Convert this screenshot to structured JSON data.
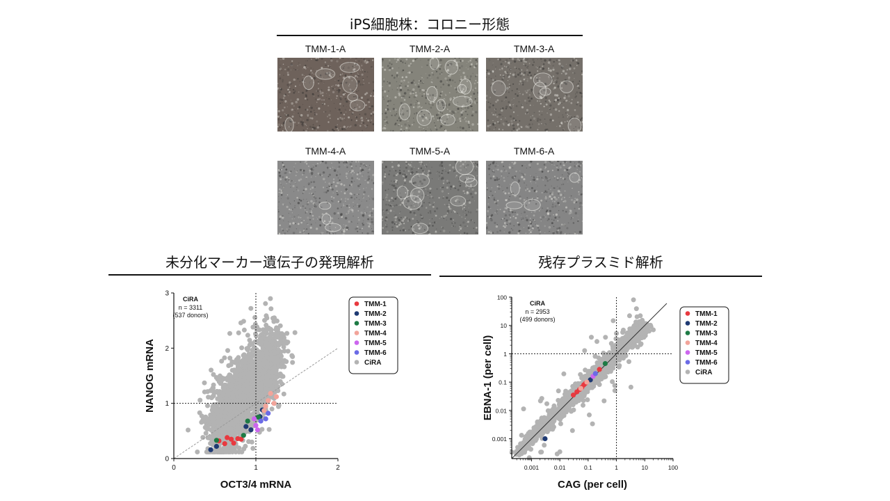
{
  "colony": {
    "title": "iPS細胞株：コロニー形態",
    "images": [
      {
        "label": "TMM-1-A",
        "tint": "#6e625b"
      },
      {
        "label": "TMM-2-A",
        "tint": "#85847b"
      },
      {
        "label": "TMM-3-A",
        "tint": "#75706a"
      },
      {
        "label": "TMM-4-A",
        "tint": "#8a8a8a"
      },
      {
        "label": "TMM-5-A",
        "tint": "#7a7a78"
      },
      {
        "label": "TMM-6-A",
        "tint": "#858585"
      }
    ]
  },
  "colors": {
    "TMM-1": "#e8393f",
    "TMM-2": "#1f3a73",
    "TMM-3": "#1e7b45",
    "TMM-4": "#f2a49a",
    "TMM-5": "#cc66ee",
    "TMM-6": "#6b6be6",
    "CiRA": "#b3b3b3"
  },
  "chart_data": [
    {
      "type": "scatter",
      "title": "未分化マーカー遺伝子の発現解析",
      "xlabel": "OCT3/4 mRNA",
      "ylabel": "NANOG  mRNA",
      "xlim": [
        0,
        2
      ],
      "ylim": [
        0,
        3
      ],
      "xticks": [
        "0",
        "1",
        "2"
      ],
      "yticks": [
        "0",
        "1",
        "2",
        "3"
      ],
      "annotation": {
        "title": "CiRA",
        "n": "n = 3311",
        "donors": "(537 donors)"
      },
      "reference_lines": {
        "x": 1,
        "y": 1,
        "diagonal": true
      },
      "legend": [
        "TMM-1",
        "TMM-2",
        "TMM-3",
        "TMM-4",
        "TMM-5",
        "TMM-6",
        "CiRA"
      ],
      "legend_position": "top-right",
      "series": [
        {
          "name": "TMM-1",
          "x": [
            0.62,
            0.7,
            0.73,
            0.78,
            0.82,
            0.55,
            0.65
          ],
          "y": [
            0.27,
            0.35,
            0.28,
            0.36,
            0.35,
            0.32,
            0.38
          ]
        },
        {
          "name": "TMM-2",
          "x": [
            0.45,
            0.52,
            0.88,
            0.94,
            1.05,
            1.08
          ],
          "y": [
            0.16,
            0.22,
            0.58,
            0.52,
            0.76,
            0.88
          ]
        },
        {
          "name": "TMM-3",
          "x": [
            0.52,
            0.85,
            0.9,
            1.03
          ],
          "y": [
            0.33,
            0.42,
            0.68,
            0.75
          ]
        },
        {
          "name": "TMM-4",
          "x": [
            1.12,
            1.15,
            1.18,
            1.22,
            1.25,
            1.1
          ],
          "y": [
            0.95,
            1.05,
            1.18,
            1.0,
            1.12,
            0.87
          ]
        },
        {
          "name": "TMM-5",
          "x": [
            0.98,
            1.0,
            1.02
          ],
          "y": [
            0.72,
            0.6,
            0.52
          ]
        },
        {
          "name": "TMM-6",
          "x": [
            1.06,
            1.12,
            1.15
          ],
          "y": [
            0.68,
            0.72,
            0.82
          ]
        }
      ]
    },
    {
      "type": "scatter",
      "title": "残存プラスミド解析",
      "xlabel": "CAG (per cell)",
      "ylabel": "EBNA-1 (per cell)",
      "xscale": "log",
      "yscale": "log",
      "xlim": [
        0.0002,
        100
      ],
      "ylim": [
        0.0002,
        100
      ],
      "xticks": [
        "0.001",
        "0.01",
        "0.1",
        "1",
        "10",
        "100"
      ],
      "yticks": [
        "0.001",
        "0.01",
        "0.1",
        "1",
        "10",
        "100"
      ],
      "annotation": {
        "title": "CiRA",
        "n": "n = 2953",
        "donors": "(499 donors)"
      },
      "reference_lines": {
        "x": 1,
        "y": 1,
        "diagonal": true
      },
      "legend": [
        "TMM-1",
        "TMM-2",
        "TMM-3",
        "TMM-4",
        "TMM-5",
        "TMM-6",
        "CiRA"
      ],
      "legend_position": "top-right",
      "series": [
        {
          "name": "TMM-1",
          "x": [
            0.03,
            0.04,
            0.05,
            0.06,
            0.07,
            0.08,
            0.25
          ],
          "y": [
            0.035,
            0.045,
            0.055,
            0.065,
            0.08,
            0.09,
            0.28
          ]
        },
        {
          "name": "TMM-2",
          "x": [
            0.003,
            0.12
          ],
          "y": [
            0.001,
            0.12
          ]
        },
        {
          "name": "TMM-3",
          "x": [
            0.4
          ],
          "y": [
            0.45
          ]
        },
        {
          "name": "TMM-4",
          "x": [
            0.055,
            0.09
          ],
          "y": [
            0.06,
            0.1
          ]
        },
        {
          "name": "TMM-5",
          "x": [
            0.15
          ],
          "y": [
            0.16
          ]
        },
        {
          "name": "TMM-6",
          "x": [
            0.18
          ],
          "y": [
            0.2
          ]
        }
      ]
    }
  ]
}
